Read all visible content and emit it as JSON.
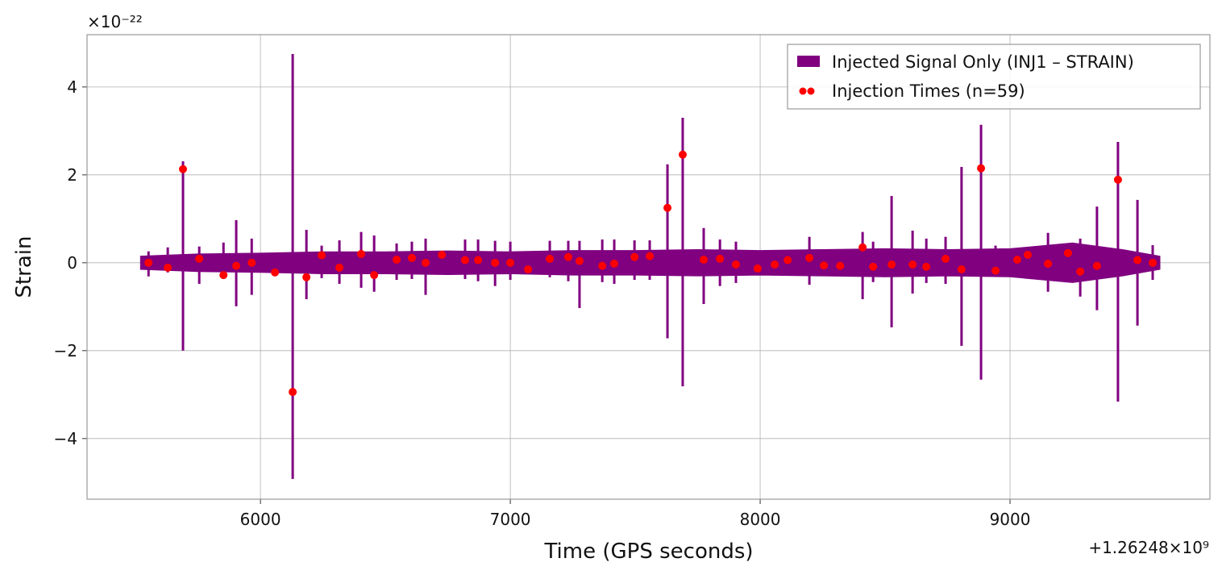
{
  "chart_data": {
    "type": "signal",
    "xlabel": "Time (GPS seconds)",
    "ylabel": "Strain",
    "x_offset_label": "+1.26248×10⁹",
    "y_scale_label": "×10⁻²²",
    "xlim": [
      5306,
      9800
    ],
    "ylim": [
      -5.38,
      5.19
    ],
    "xticks": [
      6000,
      7000,
      8000,
      9000
    ],
    "yticks": [
      {
        "value": -4,
        "label": "−4"
      },
      {
        "value": -2,
        "label": "−2"
      },
      0,
      2,
      4
    ],
    "grid": true,
    "legend": "upper right",
    "series": [
      {
        "name": "Injected Signal Only (INJ1 – STRAIN)",
        "color": "#800080",
        "band_x": [
          5520,
          5750,
          6000,
          6250,
          6500,
          6750,
          7000,
          7250,
          7500,
          7750,
          8000,
          8250,
          8500,
          8750,
          9000,
          9250,
          9450,
          9600
        ],
        "band_upper": [
          0.15,
          0.2,
          0.22,
          0.25,
          0.25,
          0.27,
          0.25,
          0.28,
          0.28,
          0.3,
          0.28,
          0.3,
          0.32,
          0.3,
          0.32,
          0.45,
          0.3,
          0.15
        ],
        "band_lower": [
          -0.15,
          -0.2,
          -0.22,
          -0.25,
          -0.25,
          -0.27,
          -0.25,
          -0.28,
          -0.28,
          -0.3,
          -0.28,
          -0.3,
          -0.32,
          -0.3,
          -0.32,
          -0.45,
          -0.3,
          -0.15
        ],
        "spike_x": [
          5552,
          5629,
          5690,
          5755,
          5852,
          5903,
          5965,
          6129,
          6184,
          6245,
          6316,
          6403,
          6455,
          6545,
          6606,
          6661,
          6819,
          6871,
          6939,
          7000,
          7158,
          7232,
          7277,
          7368,
          7416,
          7497,
          7558,
          7629,
          7690,
          7774,
          7839,
          7903,
          8197,
          8410,
          8452,
          8526,
          8610,
          8665,
          8742,
          8806,
          8884,
          8942,
          9152,
          9281,
          9348,
          9432,
          9510,
          9571
        ],
        "spike_upper": [
          0.26,
          0.35,
          2.31,
          0.37,
          0.46,
          0.97,
          0.55,
          4.75,
          0.75,
          0.39,
          0.51,
          0.7,
          0.62,
          0.44,
          0.48,
          0.55,
          0.53,
          0.53,
          0.5,
          0.48,
          0.5,
          0.5,
          0.5,
          0.53,
          0.53,
          0.51,
          0.51,
          2.24,
          3.3,
          0.79,
          0.53,
          0.48,
          0.59,
          0.7,
          0.48,
          1.52,
          0.73,
          0.55,
          0.59,
          2.18,
          3.14,
          0.39,
          0.68,
          0.55,
          1.28,
          2.75,
          1.43,
          0.4
        ],
        "spike_lower": [
          -0.31,
          -0.22,
          -2.0,
          -0.48,
          -0.37,
          -0.99,
          -0.73,
          -4.92,
          -0.83,
          -0.35,
          -0.48,
          -0.57,
          -0.66,
          -0.39,
          -0.37,
          -0.73,
          -0.37,
          -0.42,
          -0.53,
          -0.39,
          -0.33,
          -0.42,
          -1.03,
          -0.44,
          -0.48,
          -0.39,
          -0.39,
          -1.72,
          -2.81,
          -0.94,
          -0.53,
          -0.46,
          -0.5,
          -0.83,
          -0.44,
          -1.47,
          -0.7,
          -0.46,
          -0.48,
          -1.89,
          -2.66,
          -0.29,
          -0.66,
          -0.77,
          -1.08,
          -3.16,
          -1.43,
          -0.39
        ]
      },
      {
        "name": "Injection Times (n=59)",
        "color": "#ff0000",
        "x": [
          5552,
          5629,
          5690,
          5755,
          5852,
          5903,
          5965,
          6058,
          6129,
          6184,
          6245,
          6316,
          6403,
          6455,
          6545,
          6606,
          6661,
          6726,
          6819,
          6871,
          6939,
          7000,
          7071,
          7158,
          7232,
          7277,
          7368,
          7416,
          7497,
          7558,
          7629,
          7690,
          7774,
          7839,
          7903,
          7990,
          8058,
          8110,
          8197,
          8255,
          8320,
          8410,
          8452,
          8526,
          8610,
          8665,
          8742,
          8806,
          8884,
          8942,
          9029,
          9071,
          9152,
          9232,
          9281,
          9348,
          9432,
          9510,
          9571
        ],
        "values": [
          0,
          -0.11,
          2.13,
          0.09,
          -0.28,
          -0.07,
          0,
          -0.22,
          -2.94,
          -0.33,
          0.17,
          -0.11,
          0.2,
          -0.28,
          0.07,
          0.11,
          0,
          0.18,
          0.06,
          0.06,
          0,
          0,
          -0.15,
          0.09,
          0.13,
          0.04,
          -0.07,
          -0.02,
          0.13,
          0.15,
          1.25,
          2.46,
          0.07,
          0.09,
          -0.04,
          -0.13,
          -0.04,
          0.06,
          0.11,
          -0.06,
          -0.07,
          0.35,
          -0.09,
          -0.04,
          -0.04,
          -0.09,
          0.09,
          -0.15,
          2.15,
          -0.18,
          0.07,
          0.18,
          -0.02,
          0.22,
          -0.2,
          -0.07,
          1.89,
          0.06,
          0
        ]
      }
    ]
  }
}
